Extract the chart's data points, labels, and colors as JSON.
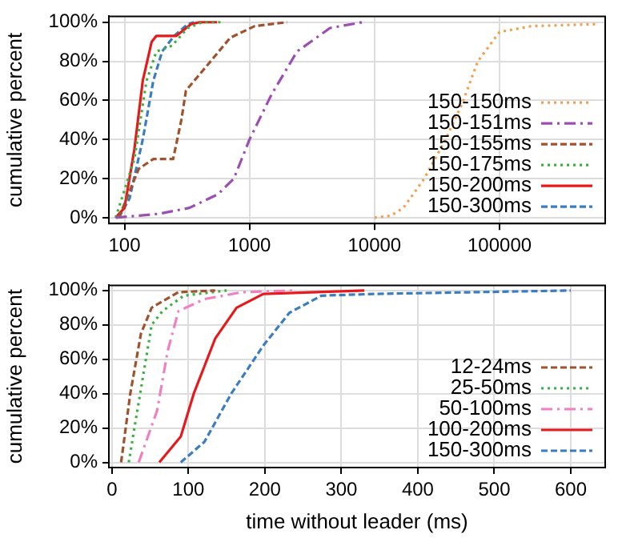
{
  "chart_data": [
    {
      "type": "line",
      "ylabel": "cumulative percent",
      "log": "x",
      "grid": true,
      "legend": "bottom right",
      "marker": "none",
      "xlim": [
        75,
        700000
      ],
      "xticks": [
        100,
        1000,
        10000,
        100000
      ],
      "ylim": [
        -3,
        103
      ],
      "yticks": [
        {
          "value": 0,
          "label": "0%"
        },
        {
          "value": 20,
          "label": "20%"
        },
        {
          "value": 40,
          "label": "40%"
        },
        {
          "value": 60,
          "label": "60%"
        },
        {
          "value": 80,
          "label": "80%"
        },
        {
          "value": 100,
          "label": "100%"
        }
      ],
      "series": [
        {
          "name": "150-150ms",
          "color": "#f0a050",
          "line_style": "dotted",
          "x": [
            10000,
            13500,
            17000,
            25000,
            37000,
            50000,
            67000,
            100000,
            180000,
            600000
          ],
          "values": [
            0,
            1,
            5,
            20,
            40,
            58,
            80,
            95,
            98,
            99
          ]
        },
        {
          "name": "150-151ms",
          "color": "#9b4fb0",
          "line_style": "dashdot",
          "x": [
            85,
            190,
            330,
            560,
            750,
            1000,
            1500,
            2400,
            4400,
            8000
          ],
          "values": [
            0,
            2,
            5,
            12,
            20,
            40,
            63,
            85,
            97,
            100
          ]
        },
        {
          "name": "150-155ms",
          "color": "#a0522d",
          "line_style": "dashed",
          "x": [
            90,
            130,
            170,
            245,
            285,
            310,
            460,
            700,
            1100,
            2000
          ],
          "values": [
            0,
            25,
            30,
            30,
            50,
            65,
            78,
            92,
            98,
            100
          ]
        },
        {
          "name": "150-175ms",
          "color": "#3cb043",
          "line_style": "dotted",
          "x": [
            85,
            120,
            150,
            180,
            240,
            320,
            420,
            600
          ],
          "values": [
            0,
            30,
            70,
            85,
            88,
            97,
            100,
            100
          ]
        },
        {
          "name": "150-200ms",
          "color": "#e41a1c",
          "line_style": "solid",
          "x": [
            85,
            100,
            120,
            140,
            165,
            180,
            260,
            340,
            400,
            550
          ],
          "values": [
            0,
            5,
            35,
            70,
            90,
            93,
            93,
            99,
            100,
            100
          ]
        },
        {
          "name": "150-300ms",
          "color": "#3a7dc0",
          "line_style": "dashed",
          "x": [
            90,
            110,
            140,
            170,
            200,
            250,
            320,
            360
          ],
          "values": [
            0,
            10,
            40,
            70,
            85,
            93,
            99,
            100
          ]
        }
      ]
    },
    {
      "type": "line",
      "ylabel": "cumulative percent",
      "xlabel": "time without leader (ms)",
      "grid": true,
      "legend": "bottom right",
      "marker": "none",
      "xlim": [
        -4,
        645
      ],
      "xticks": [
        0,
        100,
        200,
        300,
        400,
        500,
        600
      ],
      "ylim": [
        -3,
        103
      ],
      "yticks": [
        {
          "value": 0,
          "label": "0%"
        },
        {
          "value": 20,
          "label": "20%"
        },
        {
          "value": 40,
          "label": "40%"
        },
        {
          "value": 60,
          "label": "60%"
        },
        {
          "value": 80,
          "label": "80%"
        },
        {
          "value": 100,
          "label": "100%"
        }
      ],
      "series": [
        {
          "name": "12-24ms",
          "color": "#a0522d",
          "line_style": "dashed",
          "x": [
            12,
            24,
            38,
            52,
            87,
            135
          ],
          "values": [
            0,
            40,
            75,
            90,
            99,
            100
          ]
        },
        {
          "name": "25-50ms",
          "color": "#3cb043",
          "line_style": "dotted",
          "x": [
            22,
            35,
            52,
            66,
            94,
            150
          ],
          "values": [
            0,
            35,
            80,
            88,
            97,
            100
          ]
        },
        {
          "name": "50-100ms",
          "color": "#f080c0",
          "line_style": "dashdot",
          "x": [
            35,
            59,
            73,
            87,
            121,
            170,
            240
          ],
          "values": [
            0,
            30,
            65,
            88,
            95,
            99,
            100
          ]
        },
        {
          "name": "100-200ms",
          "color": "#e41a1c",
          "line_style": "solid",
          "x": [
            62,
            90,
            107,
            135,
            163,
            198,
            330
          ],
          "values": [
            0,
            15,
            40,
            72,
            90,
            98,
            100
          ]
        },
        {
          "name": "150-300ms",
          "color": "#3a7dc0",
          "line_style": "dashed",
          "x": [
            90,
            121,
            156,
            198,
            232,
            274,
            343,
            600
          ],
          "values": [
            0,
            12,
            40,
            68,
            87,
            97,
            98,
            100
          ]
        }
      ]
    }
  ]
}
